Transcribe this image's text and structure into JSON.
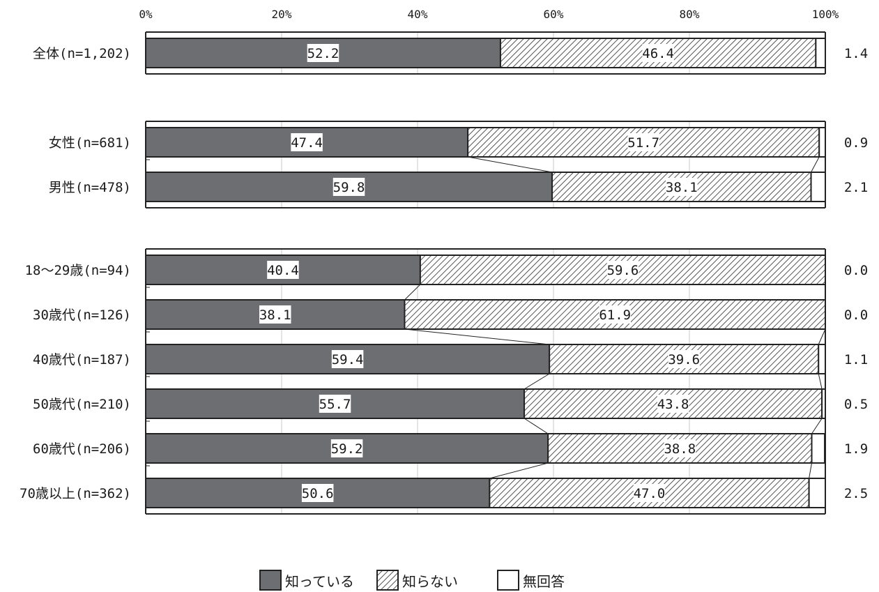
{
  "chart_data": {
    "type": "bar",
    "orientation": "horizontal",
    "stacked": true,
    "xlim": [
      0,
      100
    ],
    "x_ticks": [
      "0%",
      "20%",
      "40%",
      "60%",
      "80%",
      "100%"
    ],
    "grid": true,
    "legend_position": "bottom-center",
    "colors": {
      "know": "#6d6e72",
      "dont_know_hatch": "#555555",
      "no_answer": "#ffffff",
      "outline": "#222222"
    },
    "series": [
      {
        "name": "知っている",
        "pattern": "solid"
      },
      {
        "name": "知らない",
        "pattern": "hatched"
      },
      {
        "name": "無回答",
        "pattern": "empty"
      }
    ],
    "groups": [
      {
        "rows": [
          {
            "label": "全体(n=1,202)",
            "values": [
              52.2,
              46.4,
              1.4
            ],
            "labels": [
              "52.2",
              "46.4",
              "1.4"
            ]
          }
        ]
      },
      {
        "rows": [
          {
            "label": "女性(n=681)",
            "values": [
              47.4,
              51.7,
              0.9
            ],
            "labels": [
              "47.4",
              "51.7",
              "0.9"
            ]
          },
          {
            "label": "男性(n=478)",
            "values": [
              59.8,
              38.1,
              2.1
            ],
            "labels": [
              "59.8",
              "38.1",
              "2.1"
            ]
          }
        ]
      },
      {
        "rows": [
          {
            "label": "18～29歳(n=94)",
            "values": [
              40.4,
              59.6,
              0.0
            ],
            "labels": [
              "40.4",
              "59.6",
              "0.0"
            ]
          },
          {
            "label": "30歳代(n=126)",
            "values": [
              38.1,
              61.9,
              0.0
            ],
            "labels": [
              "38.1",
              "61.9",
              "0.0"
            ]
          },
          {
            "label": "40歳代(n=187)",
            "values": [
              59.4,
              39.6,
              1.1
            ],
            "labels": [
              "59.4",
              "39.6",
              "1.1"
            ]
          },
          {
            "label": "50歳代(n=210)",
            "values": [
              55.7,
              43.8,
              0.5
            ],
            "labels": [
              "55.7",
              "43.8",
              "0.5"
            ]
          },
          {
            "label": "60歳代(n=206)",
            "values": [
              59.2,
              38.8,
              1.9
            ],
            "labels": [
              "59.2",
              "38.8",
              "1.9"
            ]
          },
          {
            "label": "70歳以上(n=362)",
            "values": [
              50.6,
              47.0,
              2.5
            ],
            "labels": [
              "50.6",
              "47.0",
              "2.5"
            ]
          }
        ]
      }
    ]
  }
}
